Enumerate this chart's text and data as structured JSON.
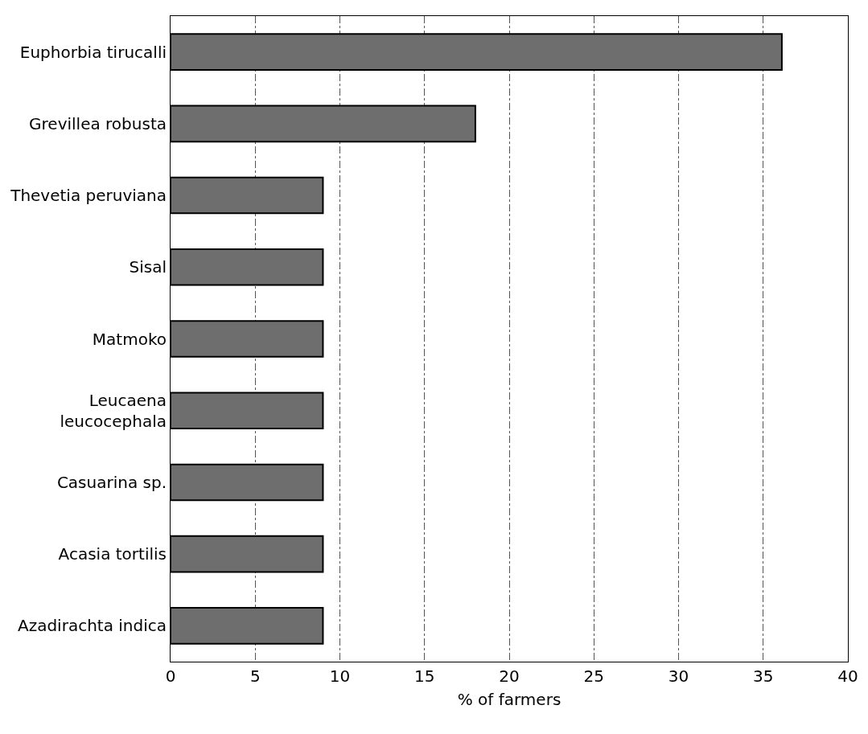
{
  "chart_data": {
    "type": "bar",
    "orientation": "horizontal",
    "xlabel": "% of farmers",
    "categories": [
      "Euphorbia tirucalli",
      "Grevillea robusta",
      "Thevetia peruviana",
      "Sisal",
      "Matmoko",
      "Leucaena\nleucocephala",
      "Casuarina sp.",
      "Acasia tortilis",
      "Azadirachta indica"
    ],
    "values": [
      36.1,
      18.0,
      9.0,
      9.0,
      9.0,
      9.0,
      9.0,
      9.0,
      9.0
    ],
    "color": "#6e6e6e",
    "xlim": [
      0,
      40
    ],
    "xticks": [
      0,
      5,
      10,
      15,
      20,
      25,
      30,
      35,
      40
    ],
    "grid": "x",
    "legend": false
  }
}
